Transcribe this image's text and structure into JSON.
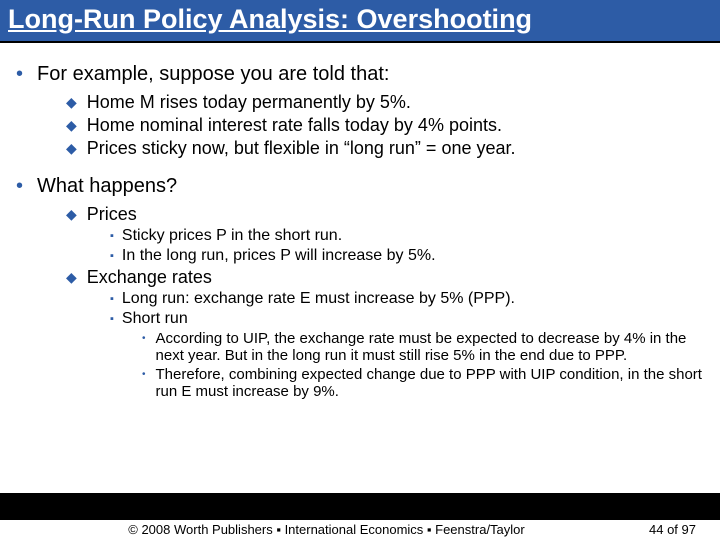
{
  "title": "Long-Run Policy Analysis: Overshooting",
  "bullets": {
    "b1a": "For example, suppose you are told that:",
    "b2a": "Home M rises today permanently by 5%.",
    "b2b": "Home nominal interest rate falls today by 4% points.",
    "b2c": "Prices sticky now, but flexible in “long run” = one year.",
    "b1b": "What happens?",
    "b2d": "Prices",
    "b3a": "Sticky prices P in the short run.",
    "b3b": "In the long run, prices P will increase by 5%.",
    "b2e": "Exchange rates",
    "b3c": "Long run: exchange rate E must increase by 5% (PPP).",
    "b3d": "Short run",
    "b4a": "According to UIP, the exchange rate must be expected to decrease by 4% in the next year. But in the long run it must still rise 5% in the end due to PPP.",
    "b4b": "Therefore, combining expected change due to PPP with UIP condition, in the short run E must increase by 9%."
  },
  "footer": {
    "copyright": "© 2008 Worth Publishers ▪ International Economics ▪ Feenstra/Taylor",
    "page": "44 of 97"
  },
  "colors": {
    "title_bg": "#2d5ca6",
    "bullet": "#2d5ca6"
  }
}
